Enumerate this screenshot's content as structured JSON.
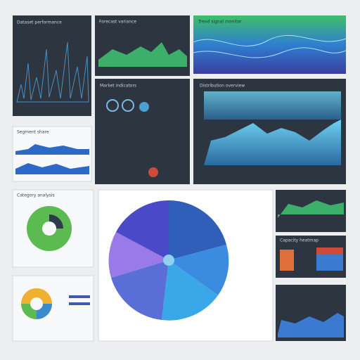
{
  "panels": [
    {
      "title": "Dataset performance"
    },
    {
      "title": "Forecast variance"
    },
    {
      "title": "Trend signal monitor"
    },
    {
      "title": "Market indicators"
    },
    {
      "title": "Distribution overview"
    },
    {
      "title": "Segment share"
    },
    {
      "title": "Category analysis"
    },
    {
      "title": "Capacity heatmap"
    }
  ]
}
